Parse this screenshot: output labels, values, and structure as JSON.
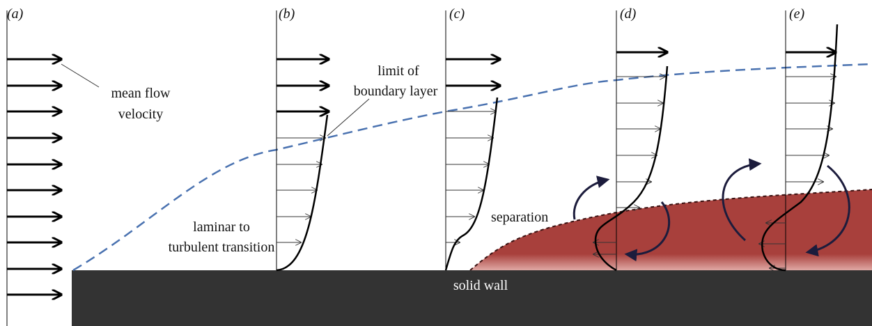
{
  "panels": [
    "(a)",
    "(b)",
    "(c)",
    "(d)",
    "(e)"
  ],
  "annotations": {
    "mean_flow": [
      "mean flow",
      "velocity"
    ],
    "boundary_layer": [
      "limit of",
      "boundary layer"
    ],
    "transition": [
      "laminar to",
      "turbulent transition"
    ],
    "separation": "separation",
    "wall": "solid wall"
  }
}
